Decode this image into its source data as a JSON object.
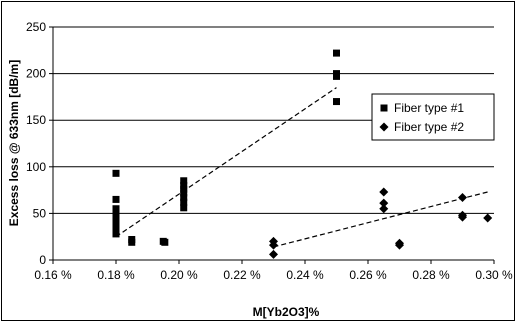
{
  "chart_data": {
    "type": "scatter",
    "xlabel": "M[Yb2O3]%",
    "ylabel": "Excess loss @ 633nm [dB/m]",
    "xlim": [
      0.16,
      0.3
    ],
    "ylim": [
      0,
      250
    ],
    "x_ticks": [
      0.16,
      0.18,
      0.2,
      0.22,
      0.24,
      0.26,
      0.28,
      0.3
    ],
    "x_tick_labels": [
      "0.16 %",
      "0.18 %",
      "0.20 %",
      "0.22 %",
      "0.24 %",
      "0.26 %",
      "0.28 %",
      "0.30 %"
    ],
    "y_ticks": [
      0,
      50,
      100,
      150,
      200,
      250
    ],
    "y_tick_labels": [
      "0",
      "50",
      "100",
      "150",
      "200",
      "250"
    ],
    "grid": "horizontal",
    "legend_position": "right",
    "series": [
      {
        "name": "Fiber type #1",
        "marker": "square",
        "color": "#000000",
        "points": [
          [
            0.18,
            93
          ],
          [
            0.18,
            65
          ],
          [
            0.18,
            55
          ],
          [
            0.18,
            50
          ],
          [
            0.18,
            47
          ],
          [
            0.18,
            43
          ],
          [
            0.18,
            40
          ],
          [
            0.18,
            37
          ],
          [
            0.18,
            34
          ],
          [
            0.18,
            31
          ],
          [
            0.18,
            28
          ],
          [
            0.185,
            22
          ],
          [
            0.185,
            19
          ],
          [
            0.195,
            20
          ],
          [
            0.1955,
            19
          ],
          [
            0.2015,
            85
          ],
          [
            0.2015,
            80
          ],
          [
            0.2015,
            76
          ],
          [
            0.2015,
            72
          ],
          [
            0.2015,
            67
          ],
          [
            0.2015,
            62
          ],
          [
            0.2015,
            56
          ],
          [
            0.25,
            222
          ],
          [
            0.25,
            200
          ],
          [
            0.25,
            197
          ],
          [
            0.25,
            170
          ]
        ],
        "trendline": {
          "x": [
            0.18,
            0.25
          ],
          "y": [
            25,
            185
          ]
        }
      },
      {
        "name": "Fiber type #2",
        "marker": "diamond",
        "color": "#000000",
        "points": [
          [
            0.23,
            20
          ],
          [
            0.23,
            16
          ],
          [
            0.23,
            6
          ],
          [
            0.265,
            73
          ],
          [
            0.265,
            61
          ],
          [
            0.265,
            55
          ],
          [
            0.27,
            18
          ],
          [
            0.27,
            16
          ],
          [
            0.29,
            67
          ],
          [
            0.29,
            48
          ],
          [
            0.29,
            46
          ],
          [
            0.298,
            45
          ]
        ],
        "trendline": {
          "x": [
            0.23,
            0.298
          ],
          "y": [
            14,
            73
          ]
        }
      }
    ]
  }
}
